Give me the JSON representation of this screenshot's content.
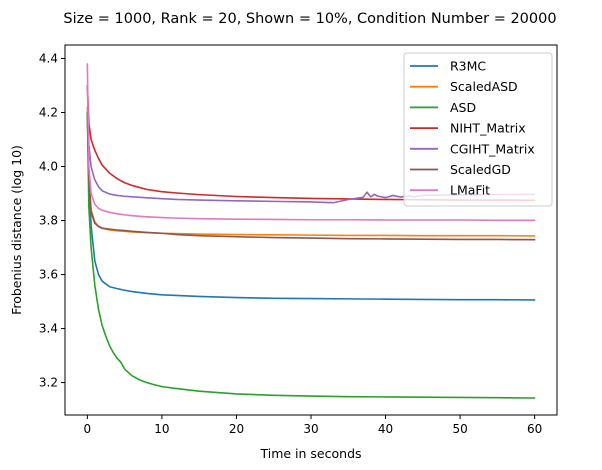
{
  "chart_data": {
    "type": "line",
    "title": "Size = 1000, Rank = 20, Shown = 10%, Condition Number = 20000",
    "xlabel": "Time in seconds",
    "ylabel": "Frobenius distance (log 10)",
    "xlim": [
      -3,
      63
    ],
    "ylim": [
      3.08,
      4.45
    ],
    "xticks": [
      0,
      10,
      20,
      30,
      40,
      50,
      60
    ],
    "yticks": [
      3.2,
      3.4,
      3.6,
      3.8,
      4.0,
      4.2,
      4.4
    ],
    "xtick_labels": [
      "0",
      "10",
      "20",
      "30",
      "40",
      "50",
      "60"
    ],
    "ytick_labels": [
      "3.2",
      "3.4",
      "3.6",
      "3.8",
      "4.0",
      "4.2",
      "4.4"
    ],
    "grid": false,
    "legend_position": "top-right",
    "series": [
      {
        "name": "R3MC",
        "color": "#1f77b4",
        "x": [
          0,
          0.2,
          0.5,
          1,
          1.5,
          2,
          3,
          4,
          5,
          6,
          8,
          10,
          15,
          20,
          25,
          30,
          35,
          40,
          45,
          50,
          55,
          60
        ],
        "y": [
          4.2,
          3.95,
          3.78,
          3.65,
          3.6,
          3.575,
          3.555,
          3.548,
          3.542,
          3.537,
          3.53,
          3.525,
          3.519,
          3.515,
          3.512,
          3.511,
          3.51,
          3.509,
          3.508,
          3.507,
          3.507,
          3.506
        ]
      },
      {
        "name": "ScaledASD",
        "color": "#ff7f0e",
        "x": [
          0,
          0.2,
          0.5,
          1,
          1.5,
          2,
          3,
          4,
          5,
          6,
          8,
          10,
          15,
          20,
          25,
          30,
          35,
          40,
          45,
          50,
          55,
          60
        ],
        "y": [
          4.22,
          3.97,
          3.84,
          3.795,
          3.778,
          3.771,
          3.765,
          3.762,
          3.76,
          3.758,
          3.755,
          3.753,
          3.75,
          3.748,
          3.747,
          3.746,
          3.745,
          3.745,
          3.744,
          3.744,
          3.744,
          3.743
        ]
      },
      {
        "name": "ASD",
        "color": "#2ca02c",
        "x": [
          0,
          0.2,
          0.5,
          1,
          1.5,
          2,
          2.5,
          3,
          3.5,
          4,
          4.5,
          5,
          6,
          7,
          8,
          9,
          10,
          12,
          15,
          20,
          25,
          30,
          35,
          40,
          45,
          50,
          55,
          60
        ],
        "y": [
          4.2,
          3.85,
          3.7,
          3.56,
          3.47,
          3.41,
          3.37,
          3.335,
          3.31,
          3.29,
          3.275,
          3.25,
          3.225,
          3.21,
          3.2,
          3.192,
          3.185,
          3.178,
          3.168,
          3.158,
          3.153,
          3.15,
          3.148,
          3.147,
          3.146,
          3.145,
          3.144,
          3.143
        ]
      },
      {
        "name": "NIHT_Matrix",
        "color": "#d62728",
        "x": [
          0,
          0.2,
          0.5,
          1,
          1.5,
          2,
          3,
          4,
          5,
          6,
          8,
          10,
          12,
          15,
          20,
          25,
          30,
          35,
          40,
          45,
          50,
          55,
          60
        ],
        "y": [
          4.3,
          4.16,
          4.1,
          4.06,
          4.03,
          4.005,
          3.975,
          3.955,
          3.94,
          3.93,
          3.915,
          3.907,
          3.902,
          3.896,
          3.889,
          3.885,
          3.882,
          3.88,
          3.878,
          3.877,
          3.876,
          3.876,
          3.875
        ]
      },
      {
        "name": "CGIHT_Matrix",
        "color": "#9467bd",
        "x": [
          0,
          0.2,
          0.5,
          1,
          1.5,
          2,
          3,
          4,
          5,
          6,
          8,
          10,
          12,
          15,
          20,
          25,
          30,
          33,
          34,
          35,
          36,
          37,
          37.5,
          38,
          38.5,
          39,
          40,
          41,
          42,
          43,
          44,
          45,
          50,
          55,
          60
        ],
        "y": [
          4.3,
          4.08,
          4.0,
          3.95,
          3.925,
          3.91,
          3.898,
          3.893,
          3.89,
          3.888,
          3.884,
          3.881,
          3.878,
          3.876,
          3.873,
          3.871,
          3.869,
          3.866,
          3.872,
          3.878,
          3.882,
          3.886,
          3.905,
          3.888,
          3.897,
          3.89,
          3.885,
          3.893,
          3.887,
          3.891,
          3.888,
          3.894,
          3.895,
          3.896,
          3.897
        ]
      },
      {
        "name": "ScaledGD",
        "color": "#8c564b",
        "x": [
          0,
          0.2,
          0.5,
          1,
          1.5,
          2,
          3,
          4,
          5,
          6,
          8,
          10,
          12,
          15,
          20,
          25,
          30,
          35,
          40,
          45,
          50,
          55,
          60
        ],
        "y": [
          4.2,
          3.96,
          3.83,
          3.79,
          3.778,
          3.772,
          3.768,
          3.765,
          3.763,
          3.76,
          3.756,
          3.753,
          3.748,
          3.744,
          3.74,
          3.737,
          3.735,
          3.733,
          3.732,
          3.731,
          3.73,
          3.73,
          3.729
        ]
      },
      {
        "name": "LMaFit",
        "color": "#e377c2",
        "x": [
          0,
          0.2,
          0.5,
          1,
          1.5,
          2,
          3,
          4,
          5,
          6,
          8,
          10,
          12,
          15,
          20,
          25,
          30,
          35,
          40,
          45,
          50,
          55,
          60
        ],
        "y": [
          4.38,
          4.0,
          3.9,
          3.86,
          3.845,
          3.838,
          3.83,
          3.825,
          3.821,
          3.818,
          3.814,
          3.811,
          3.809,
          3.807,
          3.805,
          3.804,
          3.803,
          3.803,
          3.802,
          3.802,
          3.802,
          3.801,
          3.801
        ]
      }
    ]
  }
}
